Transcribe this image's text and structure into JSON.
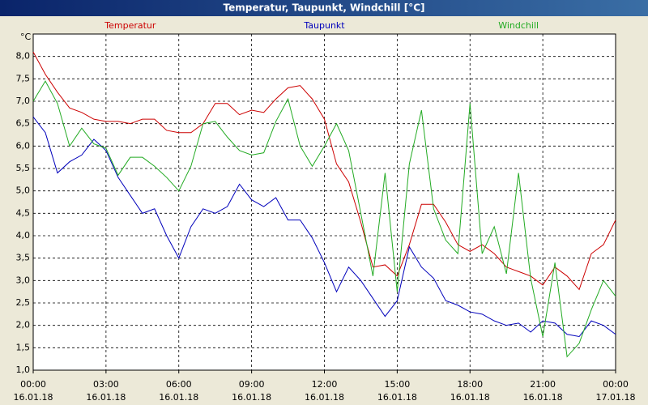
{
  "chart_data": {
    "type": "line",
    "title": "Temperatur, Taupunkt, Windchill [°C]",
    "y_label": "°C",
    "x": [
      0,
      0.5,
      1,
      1.5,
      2,
      2.5,
      3,
      3.5,
      4,
      4.5,
      5,
      5.5,
      6,
      6.5,
      7,
      7.5,
      8,
      8.5,
      9,
      9.5,
      10,
      10.5,
      11,
      11.5,
      12,
      12.5,
      13,
      13.5,
      14,
      14.5,
      15,
      15.5,
      16,
      16.5,
      17,
      17.5,
      18,
      18.5,
      19,
      19.5,
      20,
      20.5,
      21,
      21.5,
      22,
      22.5,
      23,
      23.5,
      24
    ],
    "series": [
      {
        "name": "Temperatur",
        "color": "#cc0000",
        "values": [
          8.1,
          7.6,
          7.2,
          6.85,
          6.75,
          6.6,
          6.55,
          6.55,
          6.5,
          6.6,
          6.6,
          6.35,
          6.3,
          6.3,
          6.5,
          6.95,
          6.95,
          6.7,
          6.8,
          6.75,
          7.05,
          7.3,
          7.35,
          7.05,
          6.6,
          5.6,
          5.2,
          4.3,
          3.3,
          3.35,
          3.1,
          3.8,
          4.7,
          4.7,
          4.3,
          3.8,
          3.65,
          3.8,
          3.6,
          3.3,
          3.2,
          3.1,
          2.9,
          3.3,
          3.1,
          2.8,
          3.6,
          3.8,
          4.35
        ]
      },
      {
        "name": "Taupunkt",
        "color": "#0000bb",
        "values": [
          6.65,
          6.3,
          5.4,
          5.65,
          5.8,
          6.15,
          5.9,
          5.3,
          4.9,
          4.5,
          4.6,
          4.0,
          3.5,
          4.2,
          4.6,
          4.5,
          4.65,
          5.15,
          4.8,
          4.65,
          4.85,
          4.35,
          4.35,
          3.95,
          3.4,
          2.75,
          3.3,
          3.0,
          2.6,
          2.2,
          2.55,
          3.75,
          3.3,
          3.05,
          2.55,
          2.45,
          2.3,
          2.25,
          2.1,
          2.0,
          2.05,
          1.85,
          2.1,
          2.05,
          1.8,
          1.75,
          2.1,
          2.0,
          1.8
        ]
      },
      {
        "name": "Windchill",
        "color": "#22aa22",
        "values": [
          7.0,
          7.45,
          6.95,
          6.0,
          6.4,
          6.05,
          5.95,
          5.35,
          5.75,
          5.75,
          5.55,
          5.3,
          5.0,
          5.55,
          6.5,
          6.55,
          6.2,
          5.9,
          5.8,
          5.85,
          6.55,
          7.05,
          6.0,
          5.55,
          6.0,
          6.5,
          5.9,
          4.5,
          3.1,
          5.4,
          2.75,
          5.6,
          6.8,
          4.6,
          3.9,
          3.6,
          6.95,
          3.6,
          4.2,
          3.15,
          5.4,
          3.05,
          1.75,
          3.4,
          1.3,
          1.6,
          2.35,
          3.0,
          2.65
        ]
      }
    ],
    "xlim": [
      0,
      24
    ],
    "xticks": [
      {
        "value": 0,
        "label": "00:00"
      },
      {
        "value": 3,
        "label": "03:00"
      },
      {
        "value": 6,
        "label": "06:00"
      },
      {
        "value": 9,
        "label": "09:00"
      },
      {
        "value": 12,
        "label": "12:00"
      },
      {
        "value": 15,
        "label": "15:00"
      },
      {
        "value": 18,
        "label": "18:00"
      },
      {
        "value": 21,
        "label": "21:00"
      },
      {
        "value": 24,
        "label": "00:00"
      }
    ],
    "xtick_dates": [
      "16.01.18",
      "16.01.18",
      "16.01.18",
      "16.01.18",
      "16.01.18",
      "16.01.18",
      "16.01.18",
      "16.01.18",
      "17.01.18"
    ],
    "ylim": [
      1,
      8.5
    ],
    "yticks": [
      {
        "value": 1,
        "label": "1,0"
      },
      {
        "value": 1.5,
        "label": "1,5"
      },
      {
        "value": 2,
        "label": "2,0"
      },
      {
        "value": 2.5,
        "label": "2,5"
      },
      {
        "value": 3,
        "label": "3,0"
      },
      {
        "value": 3.5,
        "label": "3,5"
      },
      {
        "value": 4,
        "label": "4,0"
      },
      {
        "value": 4.5,
        "label": "4,5"
      },
      {
        "value": 5,
        "label": "5,0"
      },
      {
        "value": 5.5,
        "label": "5,5"
      },
      {
        "value": 6,
        "label": "6,0"
      },
      {
        "value": 6.5,
        "label": "6,5"
      },
      {
        "value": 7,
        "label": "7,0"
      },
      {
        "value": 7.5,
        "label": "7,5"
      },
      {
        "value": 8,
        "label": "8,0"
      }
    ],
    "grid": true
  }
}
